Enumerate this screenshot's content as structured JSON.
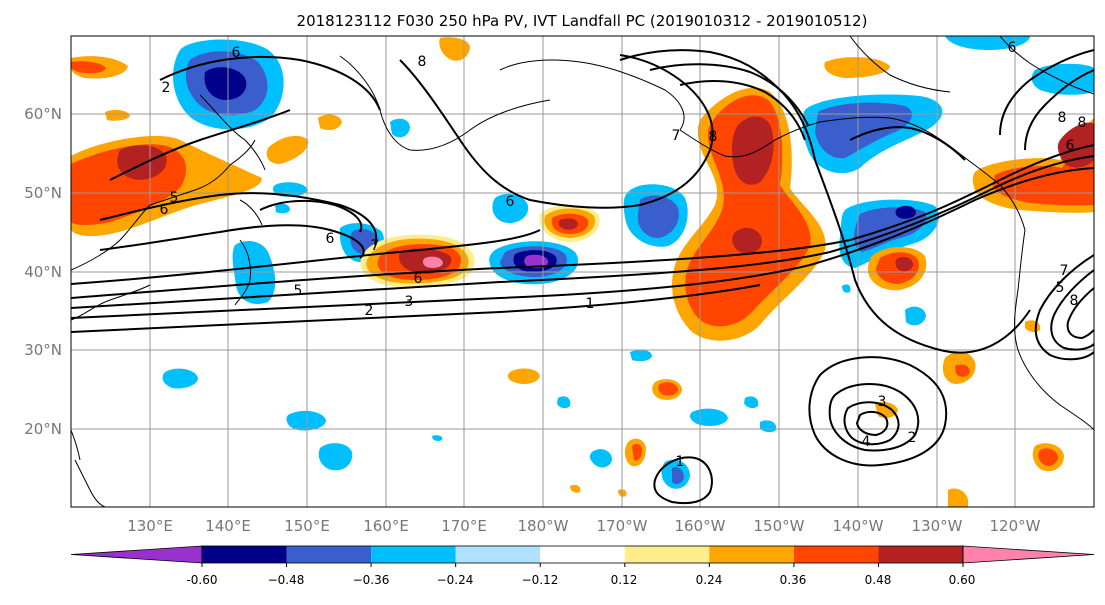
{
  "title": "2018123112 F030 250 hPa PV, IVT Landfall PC (2019010312 - 2019010512)",
  "lat_labels": [
    "60°N",
    "50°N",
    "40°N",
    "30°N",
    "20°N"
  ],
  "lon_labels": [
    "130°E",
    "140°E",
    "150°E",
    "160°E",
    "170°E",
    "180°W",
    "170°W",
    "160°W",
    "150°W",
    "140°W",
    "130°W",
    "120°W"
  ],
  "colorbar": {
    "tick_labels": [
      "-0.60",
      "−0.48",
      "−0.36",
      "−0.24",
      "−0.12",
      "0.12",
      "0.24",
      "0.36",
      "0.48",
      "0.60"
    ],
    "colors": [
      "#9932cc",
      "#00008b",
      "#3a5fcd",
      "#00bfff",
      "#b0e2ff",
      "#ffffff",
      "#ffec8b",
      "#ffa500",
      "#ff4500",
      "#b22222",
      "#ff82ab"
    ],
    "bounds": [
      -0.6,
      -0.48,
      -0.36,
      -0.24,
      -0.12,
      0.12,
      0.24,
      0.36,
      0.48,
      0.6
    ]
  },
  "map": {
    "region": "North Pacific",
    "lon_range": [
      120,
      250
    ],
    "lat_range": [
      10,
      70
    ],
    "contour_labels": [
      "6",
      "2",
      "8",
      "6",
      "5",
      "6",
      "7",
      "5",
      "6",
      "3",
      "2",
      "1",
      "7",
      "8",
      "6",
      "1",
      "3",
      "4",
      "2",
      "8",
      "6",
      "8",
      "7",
      "8",
      "5",
      "6"
    ]
  }
}
